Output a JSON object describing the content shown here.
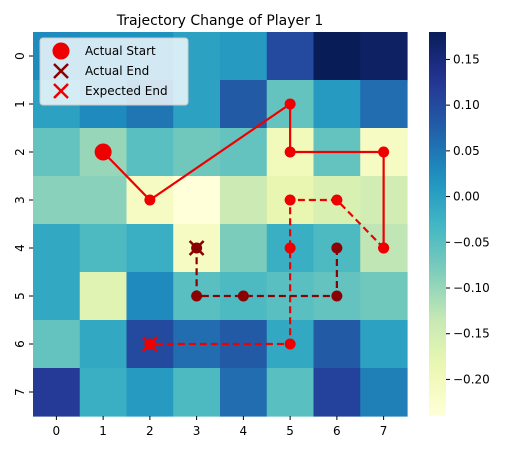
{
  "chart_data": {
    "type": "heatmap",
    "title": "Trajectory Change of Player 1",
    "x_ticks": [
      "0",
      "1",
      "2",
      "3",
      "4",
      "5",
      "6",
      "7"
    ],
    "y_ticks": [
      "0",
      "1",
      "2",
      "3",
      "4",
      "5",
      "6",
      "7"
    ],
    "grid": [
      [
        0.03,
        0.02,
        0.02,
        0.0,
        0.01,
        0.1,
        0.18,
        0.17
      ],
      [
        0.0,
        0.03,
        0.05,
        0.0,
        0.08,
        -0.06,
        0.01,
        0.06
      ],
      [
        -0.06,
        -0.1,
        -0.05,
        -0.07,
        -0.06,
        -0.2,
        -0.06,
        -0.21
      ],
      [
        -0.09,
        -0.09,
        -0.21,
        -0.24,
        -0.14,
        -0.18,
        -0.16,
        -0.15
      ],
      [
        -0.01,
        -0.04,
        -0.02,
        -0.21,
        -0.08,
        -0.02,
        -0.04,
        -0.13
      ],
      [
        -0.01,
        -0.17,
        0.03,
        -0.05,
        -0.04,
        -0.05,
        -0.06,
        -0.07
      ],
      [
        -0.06,
        -0.01,
        0.1,
        0.06,
        0.08,
        -0.01,
        0.08,
        0.0
      ],
      [
        0.12,
        -0.02,
        0.01,
        -0.04,
        0.06,
        -0.05,
        0.11,
        0.04
      ]
    ],
    "colorbar": {
      "vmin": -0.24,
      "vmax": 0.18,
      "ticks": [
        0.15,
        0.1,
        0.05,
        0.0,
        -0.05,
        -0.1,
        -0.15,
        -0.2
      ],
      "tick_labels": [
        "0.15",
        "0.10",
        "0.05",
        "0.00",
        "−0.05",
        "−0.10",
        "−0.15",
        "−0.20"
      ],
      "colormap": "YlGnBu"
    },
    "actual_path": {
      "color": "#ee0000",
      "points": [
        [
          1,
          2
        ],
        [
          2,
          3
        ],
        [
          5,
          1
        ],
        [
          5,
          2
        ],
        [
          7,
          2
        ],
        [
          7,
          4
        ]
      ]
    },
    "expected_path": {
      "color": "#ee0000",
      "points": [
        [
          7,
          4
        ],
        [
          6,
          3
        ],
        [
          5,
          3
        ],
        [
          5,
          4
        ],
        [
          5,
          6
        ],
        [
          2,
          6
        ]
      ]
    },
    "actual_end_path": {
      "color": "#8b0000",
      "points": [
        [
          6,
          4
        ],
        [
          6,
          5
        ],
        [
          4,
          5
        ],
        [
          3,
          5
        ],
        [
          3,
          4
        ]
      ]
    },
    "markers": {
      "actual_start": [
        1,
        2
      ],
      "actual_end": [
        3,
        4
      ],
      "expected_end": [
        2,
        6
      ]
    },
    "legend": {
      "placement": "top-left",
      "items": [
        {
          "label": "Actual Start",
          "color": "#ee0000",
          "marker": "circle"
        },
        {
          "label": "Actual End",
          "color": "#8b0000",
          "marker": "x"
        },
        {
          "label": "Expected End",
          "color": "#ee0000",
          "marker": "x"
        }
      ]
    }
  }
}
